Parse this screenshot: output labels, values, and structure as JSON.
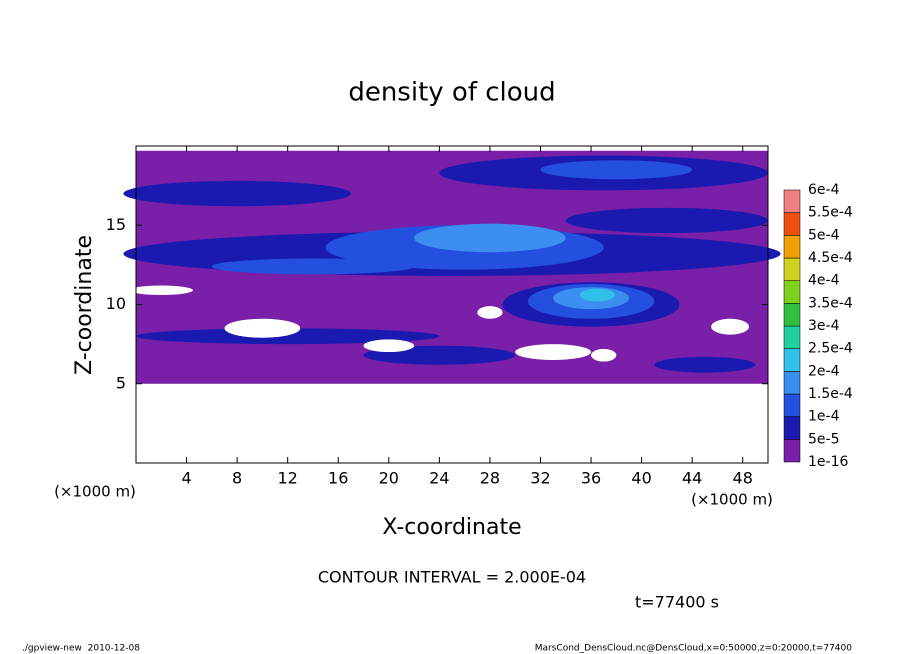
{
  "chart_data": {
    "type": "contour",
    "title": "density of cloud",
    "xlabel": "X-coordinate",
    "ylabel": "Z-coordinate",
    "y_unit": "(×1000 m)",
    "x_unit": "(×1000 m)",
    "xlim": [
      0,
      50
    ],
    "ylim": [
      0,
      20
    ],
    "xticks": [
      4,
      8,
      12,
      16,
      20,
      24,
      28,
      32,
      36,
      40,
      44,
      48
    ],
    "yticks": [
      5,
      10,
      15
    ],
    "levels": [
      {
        "value": 1e-16,
        "label": "1e-16"
      },
      {
        "value": 5e-05,
        "label": "5e-5"
      },
      {
        "value": 0.0001,
        "label": "1e-4"
      },
      {
        "value": 0.00015,
        "label": "1.5e-4"
      },
      {
        "value": 0.0002,
        "label": "2e-4"
      },
      {
        "value": 0.00025,
        "label": "2.5e-4"
      },
      {
        "value": 0.0003,
        "label": "3e-4"
      },
      {
        "value": 0.00035,
        "label": "3.5e-4"
      },
      {
        "value": 0.0004,
        "label": "4e-4"
      },
      {
        "value": 0.00045,
        "label": "4.5e-4"
      },
      {
        "value": 0.0005,
        "label": "5e-4"
      },
      {
        "value": 0.00055,
        "label": "5.5e-4"
      },
      {
        "value": 0.0006,
        "label": "6e-4"
      }
    ],
    "colors": [
      "#7a1fa8",
      "#1a1ab0",
      "#2450e0",
      "#3c8ef0",
      "#30c0e8",
      "#20d0a0",
      "#30c040",
      "#80d020",
      "#d0d020",
      "#f0a000",
      "#f05010",
      "#f08080"
    ],
    "contour_interval": "CONTOUR INTERVAL = 2.000E-04",
    "time_label": "t=77400 s",
    "footer_left": "./gpview-new  2010-12-08",
    "footer_right": "MarsCond_DensCloud.nc@DensCloud,x=0:50000,z=0:20000,t=77400"
  }
}
